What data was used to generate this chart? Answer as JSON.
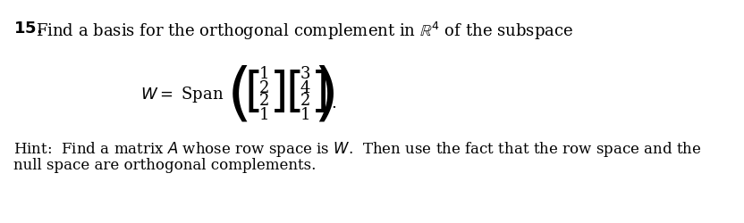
{
  "title_num": "15.",
  "title_text": "Find a basis for the orthogonal complement in $\\mathbb{R}^4$ of the subspace",
  "w_span_label": "$W = $ Span",
  "vec1": [
    "1",
    "2",
    "2",
    "1"
  ],
  "vec2": [
    "3",
    "4",
    "2",
    "1"
  ],
  "hint_line1": "Hint:  Find a matrix $A$ whose row space is $W$.  Then use the fact that the row space and the",
  "hint_line2": "null space are orthogonal complements.",
  "bg_color": "#ffffff",
  "text_color": "#000000",
  "font_size_main": 13,
  "font_size_hint": 12
}
